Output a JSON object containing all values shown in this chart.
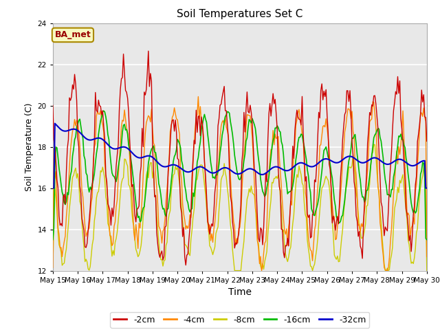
{
  "title": "Soil Temperatures Set C",
  "xlabel": "Time",
  "ylabel": "Soil Temperature (C)",
  "ylim": [
    12,
    24
  ],
  "yticks": [
    12,
    14,
    16,
    18,
    20,
    22,
    24
  ],
  "xlim_start": 0,
  "xlim_end": 360,
  "legend_labels": [
    "-2cm",
    "-4cm",
    "-8cm",
    "-16cm",
    "-32cm"
  ],
  "legend_colors": [
    "#cc0000",
    "#ff8800",
    "#cccc00",
    "#00bb00",
    "#0000cc"
  ],
  "xtick_labels": [
    "May 15",
    "May 16",
    "May 17",
    "May 18",
    "May 19",
    "May 20",
    "May 21",
    "May 22",
    "May 23",
    "May 24",
    "May 25",
    "May 26",
    "May 27",
    "May 28",
    "May 29",
    "May 30"
  ],
  "xtick_positions": [
    0,
    24,
    48,
    72,
    96,
    120,
    144,
    168,
    192,
    216,
    240,
    264,
    288,
    312,
    336,
    360
  ],
  "annotation_text": "BA_met",
  "plot_bg_color": "#e8e8e8",
  "fig_bg_color": "#ffffff",
  "grid_color": "#ffffff"
}
